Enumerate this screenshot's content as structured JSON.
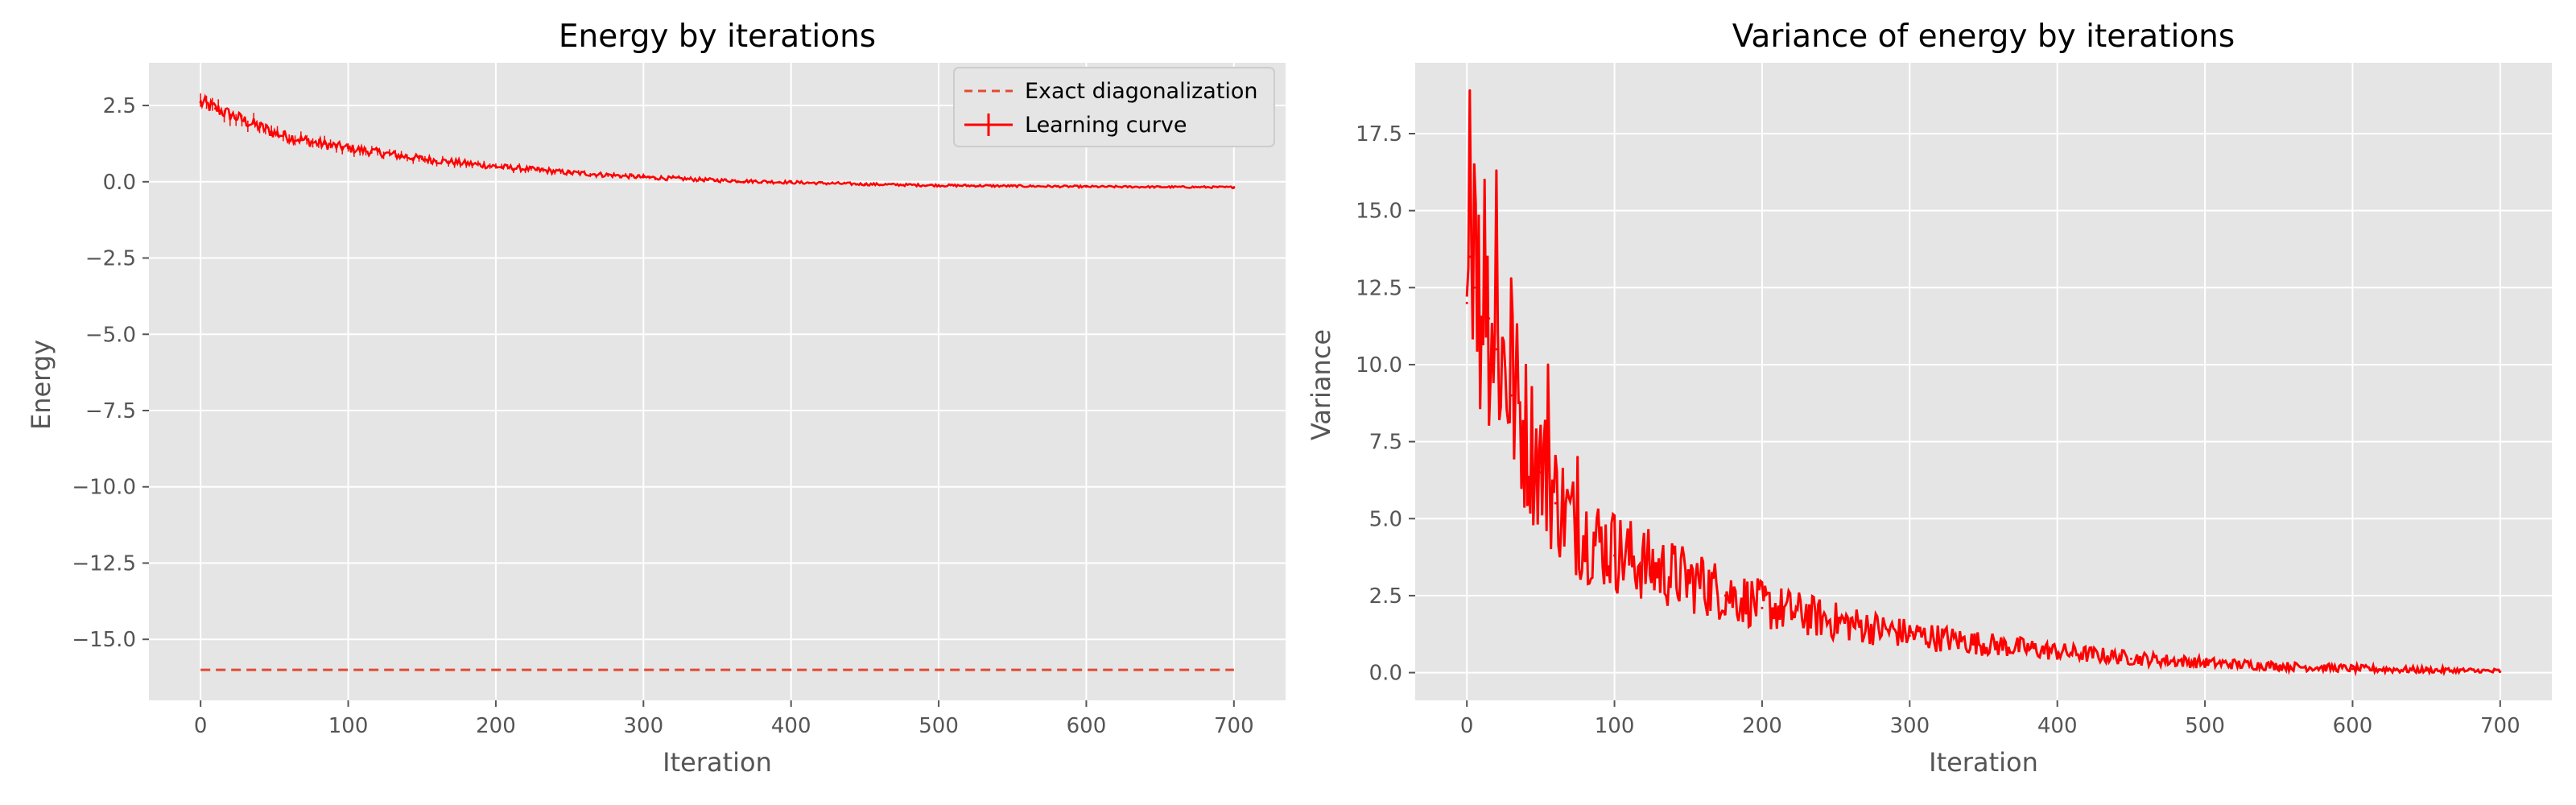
{
  "chart_data": [
    {
      "type": "line",
      "title": "Energy by iterations",
      "xlabel": "Iteration",
      "ylabel": "Energy",
      "xlim": [
        -35,
        735
      ],
      "ylim": [
        -17.0,
        3.9
      ],
      "xticks": [
        0,
        100,
        200,
        300,
        400,
        500,
        600,
        700
      ],
      "yticks": [
        2.5,
        0.0,
        -2.5,
        -5.0,
        -7.5,
        -10.0,
        -12.5,
        -15.0
      ],
      "ytick_labels": [
        "2.5",
        "0.0",
        "−2.5",
        "−5.0",
        "−7.5",
        "−10.0",
        "−12.5",
        "−15.0"
      ],
      "grid": true,
      "legend_position": "top-right",
      "series": [
        {
          "name": "Exact diagonalization",
          "style": "dashed",
          "color": "#e24a33",
          "x": [
            0,
            700
          ],
          "y": [
            -16.0,
            -16.0
          ]
        },
        {
          "name": "Learning curve",
          "style": "solid-with-errorbars",
          "color": "#ff0000",
          "x": [
            0,
            10,
            20,
            30,
            40,
            50,
            75,
            100,
            150,
            200,
            250,
            300,
            350,
            400,
            450,
            500,
            550,
            600,
            650,
            700
          ],
          "y": [
            2.6,
            2.4,
            2.2,
            2.0,
            1.8,
            1.6,
            1.3,
            1.1,
            0.75,
            0.5,
            0.3,
            0.15,
            0.05,
            -0.02,
            -0.08,
            -0.12,
            -0.14,
            -0.16,
            -0.17,
            -0.18
          ]
        }
      ]
    },
    {
      "type": "line",
      "title": "Variance of energy by iterations",
      "xlabel": "Iteration",
      "ylabel": "Variance",
      "xlim": [
        -35,
        735
      ],
      "ylim": [
        -0.9,
        19.8
      ],
      "xticks": [
        0,
        100,
        200,
        300,
        400,
        500,
        600,
        700
      ],
      "yticks": [
        0.0,
        2.5,
        5.0,
        7.5,
        10.0,
        12.5,
        15.0,
        17.5
      ],
      "ytick_labels": [
        "0.0",
        "2.5",
        "5.0",
        "7.5",
        "10.0",
        "12.5",
        "15.0",
        "17.5"
      ],
      "grid": true,
      "series": [
        {
          "style": "solid",
          "color": "#ff0000",
          "x": [
            0,
            2,
            5,
            10,
            15,
            20,
            30,
            40,
            50,
            60,
            75,
            100,
            125,
            150,
            175,
            200,
            250,
            300,
            350,
            400,
            450,
            500,
            550,
            600,
            650,
            700
          ],
          "y": [
            12.0,
            13.5,
            12.5,
            11.0,
            11.5,
            10.5,
            9.0,
            7.5,
            6.5,
            5.5,
            4.5,
            3.8,
            3.3,
            2.9,
            2.5,
            2.1,
            1.6,
            1.2,
            0.9,
            0.65,
            0.45,
            0.3,
            0.2,
            0.12,
            0.07,
            0.03
          ],
          "peaks": [
            [
              2,
              18.9
            ],
            [
              5,
              16.5
            ],
            [
              12,
              16.0
            ],
            [
              20,
              16.3
            ],
            [
              30,
              12.8
            ],
            [
              55,
              10.0
            ],
            [
              75,
              7.0
            ],
            [
              100,
              5.1
            ],
            [
              160,
              3.6
            ],
            [
              230,
              2.2
            ]
          ]
        }
      ]
    }
  ]
}
